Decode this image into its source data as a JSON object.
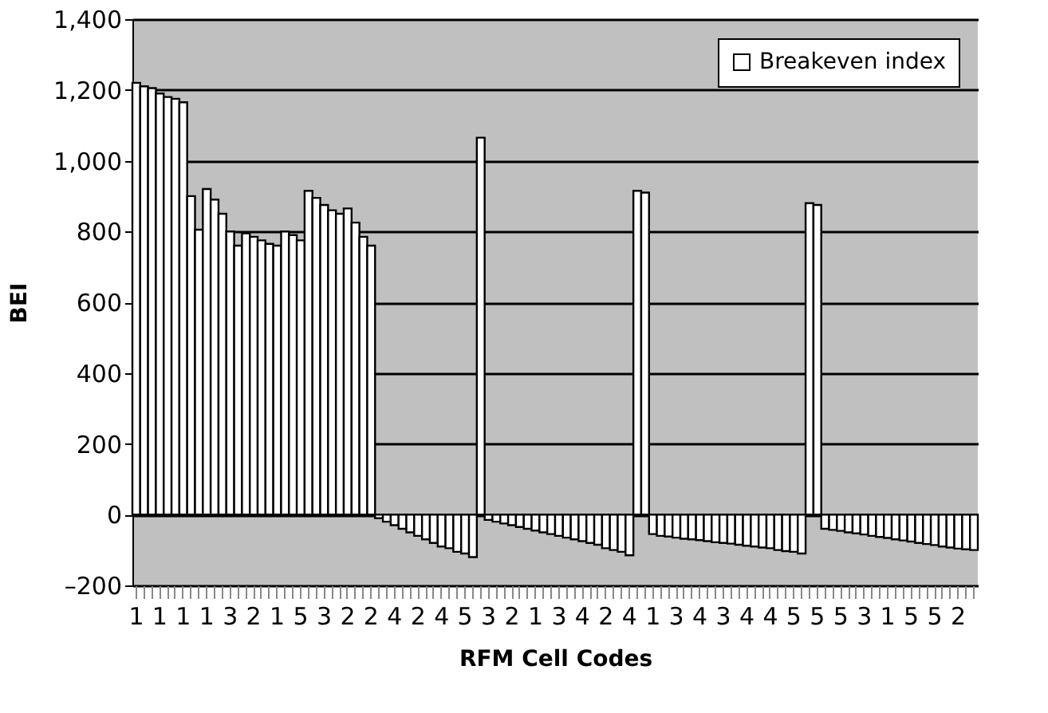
{
  "chart_data": {
    "type": "bar",
    "xlabel": "RFM Cell Codes",
    "ylabel": "BEI",
    "categories": [
      "1",
      null,
      null,
      "1",
      null,
      null,
      "1",
      null,
      null,
      "1",
      null,
      null,
      "3",
      null,
      null,
      "2",
      null,
      null,
      "1",
      null,
      null,
      "5",
      null,
      null,
      "3",
      null,
      null,
      "2",
      null,
      null,
      "2",
      null,
      null,
      "4",
      null,
      null,
      "2",
      null,
      null,
      "4",
      null,
      null,
      "5",
      null,
      null,
      "3",
      null,
      null,
      "2",
      null,
      null,
      "1",
      null,
      null,
      "3",
      null,
      null,
      "4",
      null,
      null,
      "2",
      null,
      null,
      "4",
      null,
      null,
      "1",
      null,
      null,
      "3",
      null,
      null,
      "4",
      null,
      null,
      "3",
      null,
      null,
      "4",
      null,
      null,
      "4",
      null,
      null,
      "5",
      null,
      null,
      "5",
      null,
      null,
      "5",
      null,
      null,
      "3",
      null,
      null,
      "1",
      null,
      null,
      "5",
      null,
      null,
      "5",
      null,
      null,
      "2",
      null,
      null
    ],
    "series": [
      {
        "name": "Breakeven index",
        "color": "#ffffff",
        "values": [
          1220,
          1210,
          1205,
          1190,
          1180,
          1175,
          1165,
          900,
          805,
          920,
          890,
          850,
          800,
          760,
          795,
          785,
          775,
          765,
          760,
          800,
          790,
          775,
          915,
          895,
          875,
          860,
          850,
          865,
          825,
          785,
          760,
          -10,
          -20,
          -30,
          -40,
          -50,
          -60,
          -70,
          -80,
          -90,
          -95,
          -105,
          -110,
          -120,
          1065,
          -15,
          -20,
          -25,
          -30,
          -35,
          -40,
          -45,
          -50,
          -55,
          -60,
          -65,
          -70,
          -75,
          -80,
          -85,
          -95,
          -100,
          -105,
          -115,
          915,
          910,
          -55,
          -60,
          -62,
          -65,
          -68,
          -70,
          -72,
          -75,
          -78,
          -80,
          -82,
          -85,
          -88,
          -90,
          -93,
          -95,
          -100,
          -103,
          -105,
          -110,
          880,
          875,
          -40,
          -43,
          -46,
          -50,
          -53,
          -56,
          -60,
          -63,
          -66,
          -70,
          -73,
          -76,
          -80,
          -83,
          -86,
          -90,
          -93,
          -96,
          -98,
          -100
        ]
      }
    ],
    "ylim": [
      -200,
      1400
    ],
    "yticks": [
      {
        "value": -200,
        "label": "–200"
      },
      0,
      200,
      400,
      600,
      800,
      {
        "value": 1000,
        "label": "1,000"
      },
      {
        "value": 1200,
        "label": "1,200"
      },
      {
        "value": 1400,
        "label": "1,400"
      }
    ],
    "grid": "y",
    "legend": "top right"
  }
}
